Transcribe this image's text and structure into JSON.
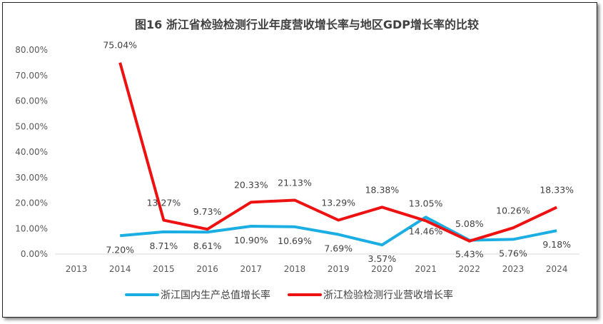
{
  "chart_data": {
    "type": "line",
    "title": "图16   浙江省检验检测行业年度营收增长率与地区GDP增长率的比较",
    "categories": [
      "2013",
      "2014",
      "2015",
      "2016",
      "2017",
      "2018",
      "2019",
      "2020",
      "2021",
      "2022",
      "2023",
      "2024"
    ],
    "ylim": [
      0,
      80
    ],
    "yticks": [
      "0.00%",
      "10.00%",
      "20.00%",
      "30.00%",
      "40.00%",
      "50.00%",
      "60.00%",
      "70.00%",
      "80.00%"
    ],
    "grid": false,
    "legend": "bottom",
    "series": [
      {
        "name": "浙江国内生产总值增长率",
        "color": "#1BAEE3",
        "values": [
          null,
          7.2,
          8.71,
          8.61,
          10.9,
          10.69,
          7.69,
          3.57,
          14.46,
          5.43,
          5.76,
          9.18
        ],
        "labels": [
          "",
          "7.20%",
          "8.71%",
          "8.61%",
          "10.90%",
          "10.69%",
          "7.69%",
          "3.57%",
          "14.46%",
          "5.43%",
          "5.76%",
          "9.18%"
        ]
      },
      {
        "name": "浙江检验检测行业营收增长率",
        "color": "#EE1111",
        "values": [
          null,
          75.04,
          13.27,
          9.73,
          20.33,
          21.13,
          13.29,
          18.38,
          13.05,
          5.08,
          10.26,
          18.33
        ],
        "labels": [
          "",
          "75.04%",
          "13.27%",
          "9.73%",
          "20.33%",
          "21.13%",
          "13.29%",
          "18.38%",
          "13.05%",
          "5.08%",
          "10.26%",
          "18.33%"
        ]
      }
    ]
  }
}
